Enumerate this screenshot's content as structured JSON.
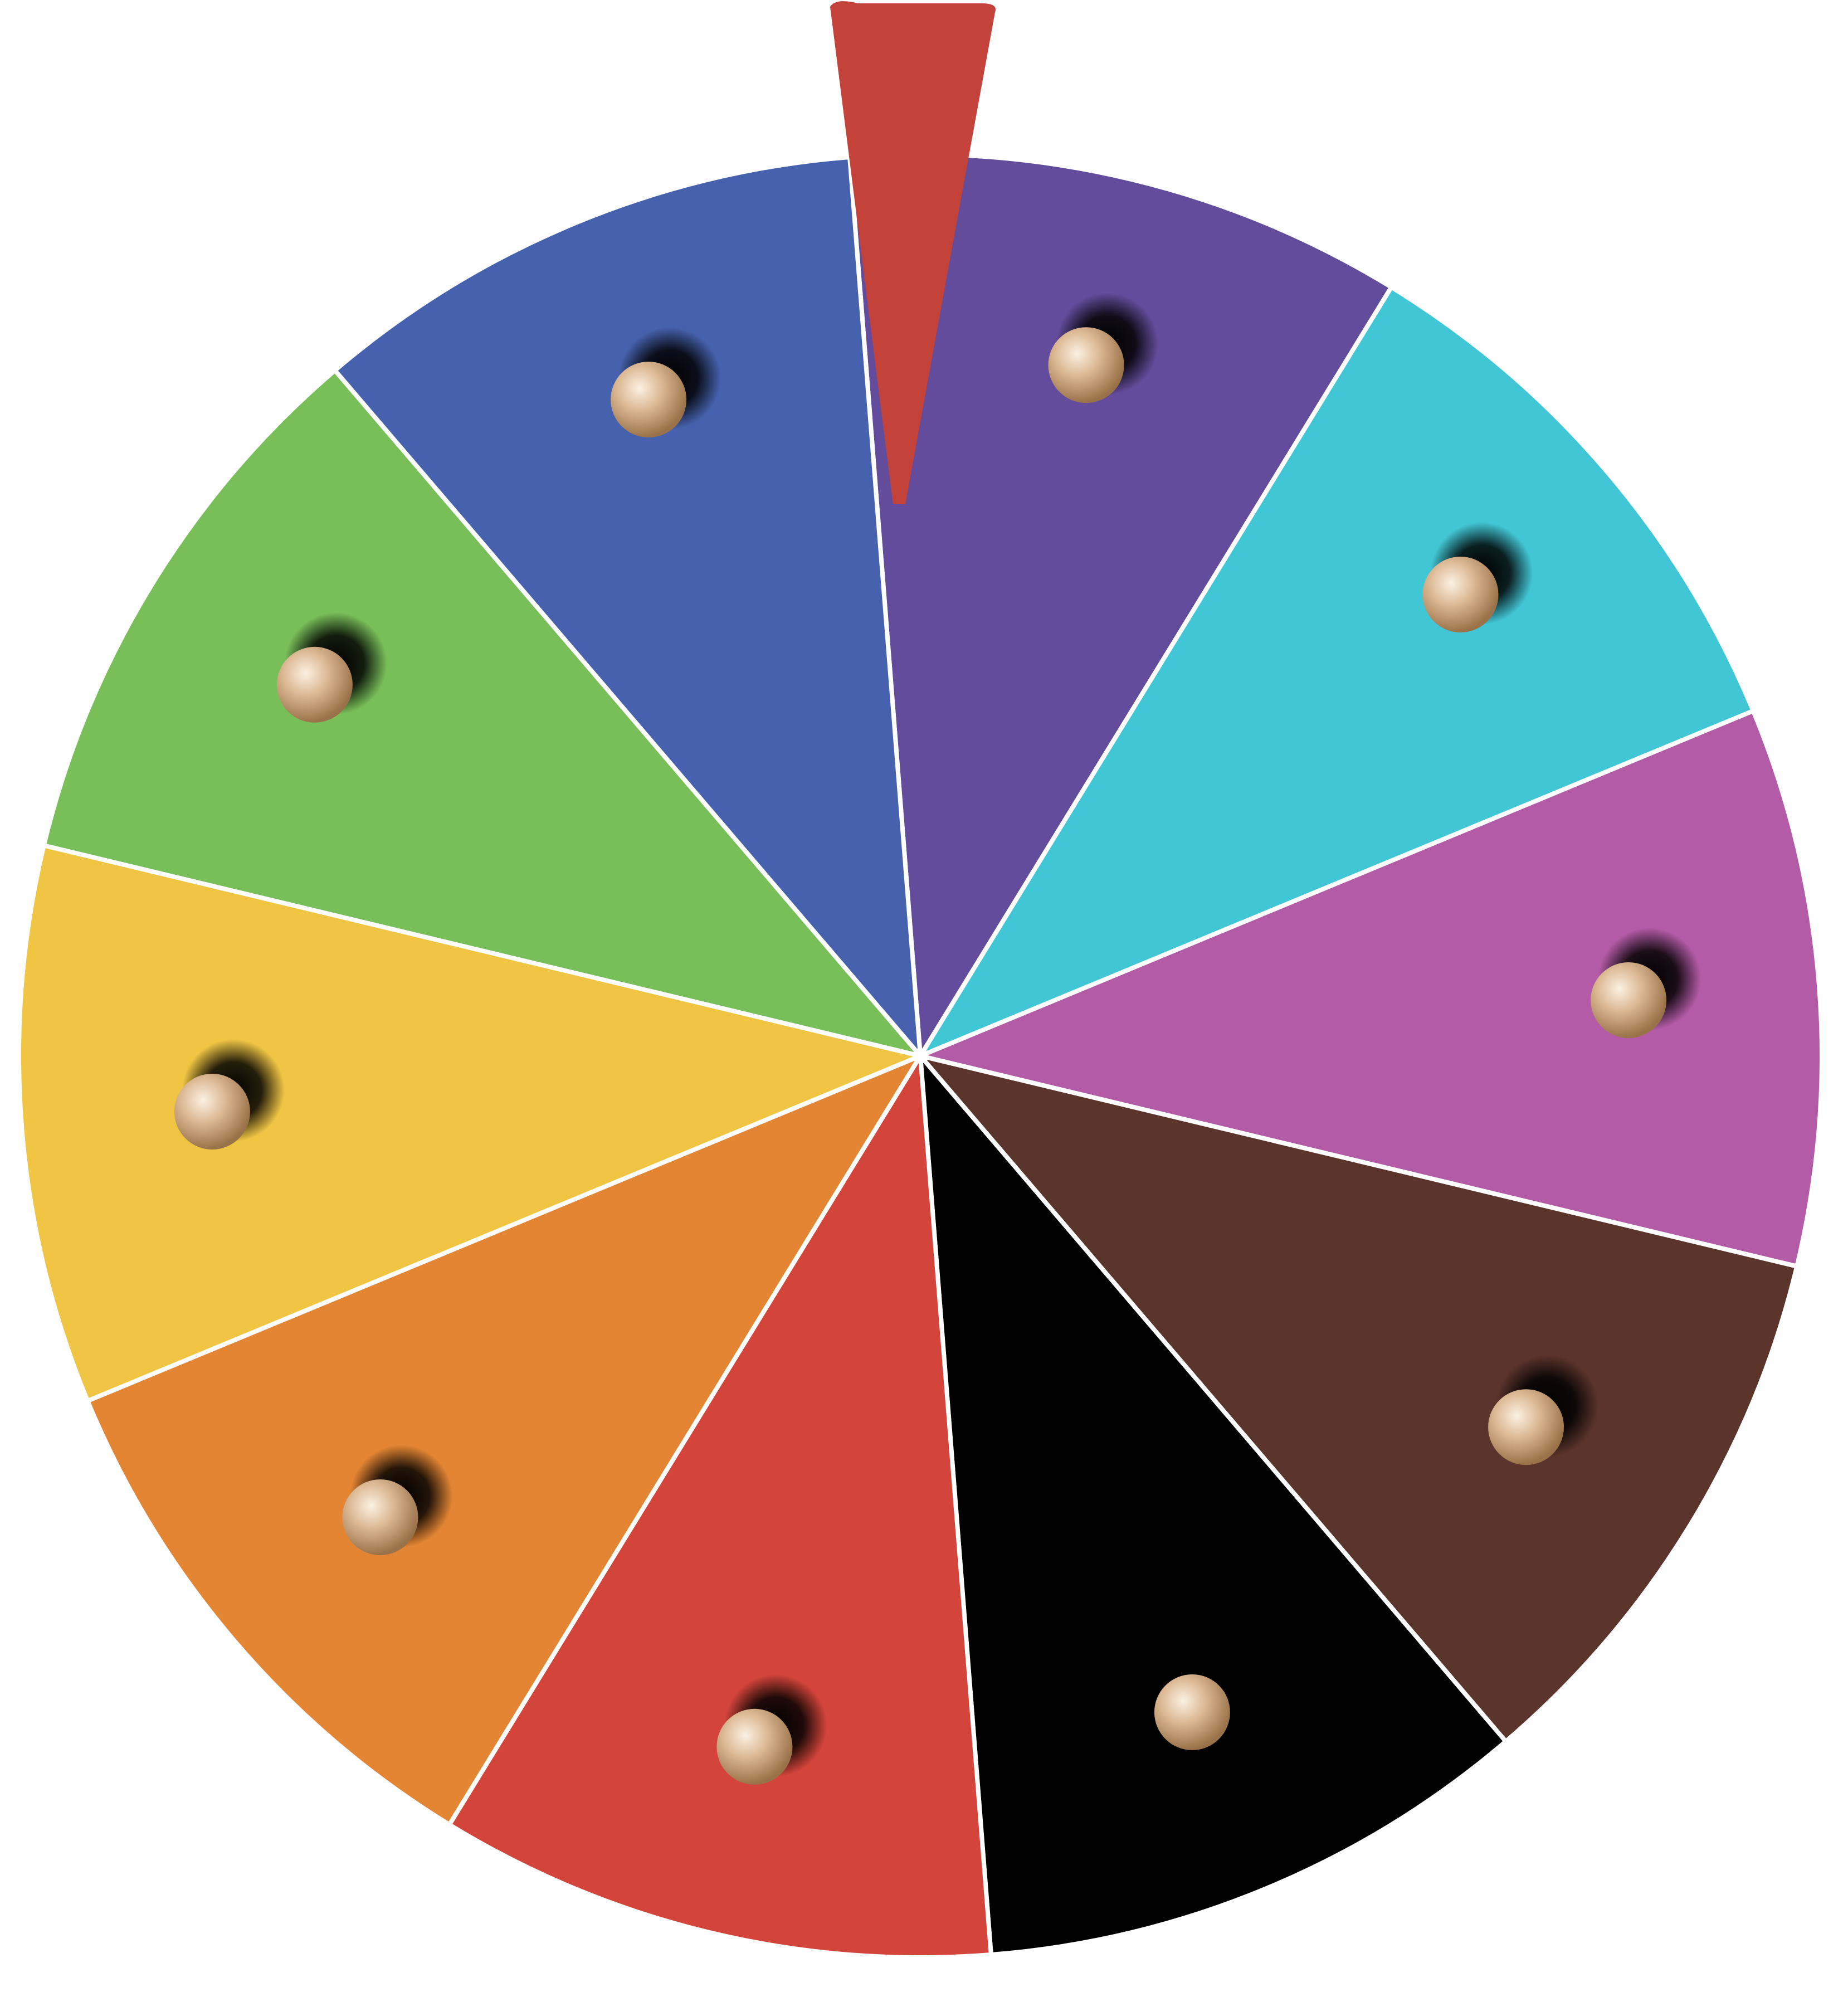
{
  "wheel": {
    "segment_count": 10,
    "divider_color": "#ffffff",
    "segments": [
      {
        "name": "purple",
        "color": "#644c9c"
      },
      {
        "name": "cyan",
        "color": "#41c6d5"
      },
      {
        "name": "magenta",
        "color": "#b35ba6"
      },
      {
        "name": "brown",
        "color": "#5b342b"
      },
      {
        "name": "black",
        "color": "#000000"
      },
      {
        "name": "red",
        "color": "#d3443a"
      },
      {
        "name": "orange",
        "color": "#e38533"
      },
      {
        "name": "yellow",
        "color": "#f0c544"
      },
      {
        "name": "green",
        "color": "#79bf59"
      },
      {
        "name": "blue",
        "color": "#4661ad"
      }
    ],
    "peg_color": "#d8b48e",
    "pointer": {
      "color": "#c3423a",
      "selected_segment": "purple"
    }
  }
}
